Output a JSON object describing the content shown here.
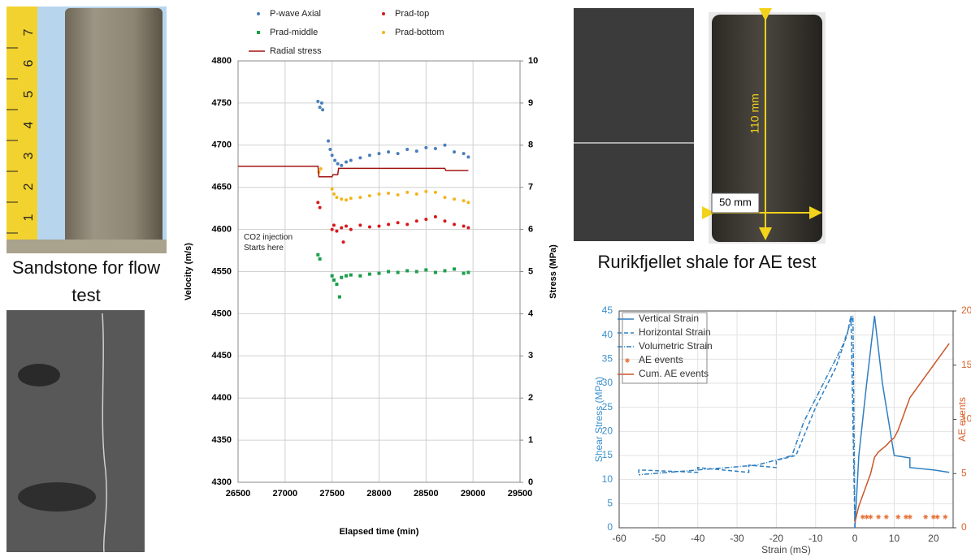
{
  "captions": {
    "sandstone": "Sandstone for flow test",
    "shale": "Rurikfjellet shale for AE test"
  },
  "photos": {
    "ruler_labels": [
      "1",
      "2",
      "3",
      "4",
      "5",
      "6",
      "7"
    ],
    "height_label": "110 mm",
    "width_label": "50 mm"
  },
  "chart_data": [
    {
      "type": "scatter",
      "x_label": "Elapsed time (min)",
      "y_label": "Velocity (m/s)",
      "y2_label": "Stress (MPa)",
      "annotation": "CO2 injection Starts here",
      "xlim": [
        26500,
        29500
      ],
      "xticks": [
        26500,
        27000,
        27500,
        28000,
        28500,
        29000,
        29500
      ],
      "ylim": [
        4300,
        4800
      ],
      "yticks": [
        4300,
        4350,
        4400,
        4450,
        4500,
        4550,
        4600,
        4650,
        4700,
        4750,
        4800
      ],
      "y2lim": [
        0,
        10
      ],
      "y2ticks": [
        0,
        1,
        2,
        3,
        4,
        5,
        6,
        7,
        8,
        9,
        10
      ],
      "grid": true,
      "legend": "top",
      "series": [
        {
          "name": "P-wave Axial",
          "color": "#4a7ebb",
          "marker": "dot",
          "x": [
            27350,
            27370,
            27390,
            27400,
            27460,
            27480,
            27500,
            27530,
            27560,
            27600,
            27650,
            27700,
            27800,
            27900,
            28000,
            28100,
            28200,
            28300,
            28400,
            28500,
            28600,
            28700,
            28800,
            28900,
            28950
          ],
          "values": [
            4752,
            4745,
            4750,
            4742,
            4705,
            4695,
            4688,
            4682,
            4678,
            4676,
            4680,
            4682,
            4685,
            4688,
            4690,
            4692,
            4690,
            4695,
            4693,
            4697,
            4696,
            4700,
            4692,
            4690,
            4686
          ]
        },
        {
          "name": "Prad-top",
          "color": "#d7191c",
          "marker": "dot",
          "x": [
            27350,
            27370,
            27500,
            27520,
            27550,
            27600,
            27620,
            27650,
            27700,
            27800,
            27900,
            28000,
            28100,
            28200,
            28300,
            28400,
            28500,
            28600,
            28700,
            28800,
            28900,
            28950
          ],
          "values": [
            4632,
            4626,
            4600,
            4605,
            4598,
            4602,
            4585,
            4604,
            4600,
            4605,
            4603,
            4604,
            4606,
            4608,
            4606,
            4610,
            4612,
            4615,
            4610,
            4606,
            4604,
            4602
          ]
        },
        {
          "name": "Prad-middle",
          "color": "#1a9f4a",
          "marker": "square",
          "x": [
            27350,
            27370,
            27500,
            27520,
            27550,
            27580,
            27600,
            27650,
            27700,
            27800,
            27900,
            28000,
            28100,
            28200,
            28300,
            28400,
            28500,
            28600,
            28700,
            28800,
            28900,
            28950
          ],
          "values": [
            4570,
            4565,
            4545,
            4540,
            4535,
            4520,
            4543,
            4545,
            4546,
            4545,
            4547,
            4548,
            4550,
            4549,
            4551,
            4550,
            4552,
            4549,
            4551,
            4553,
            4548,
            4549
          ]
        },
        {
          "name": "Prad-bottom",
          "color": "#f2b51d",
          "marker": "dot",
          "x": [
            27360,
            27380,
            27500,
            27520,
            27550,
            27600,
            27650,
            27700,
            27800,
            27900,
            28000,
            28100,
            28200,
            28300,
            28400,
            28500,
            28600,
            28700,
            28800,
            28900,
            28950
          ],
          "values": [
            4668,
            4672,
            4648,
            4642,
            4638,
            4636,
            4635,
            4637,
            4638,
            4640,
            4642,
            4643,
            4641,
            4644,
            4642,
            4645,
            4644,
            4638,
            4636,
            4634,
            4632
          ]
        },
        {
          "name": "Radial stress",
          "color": "#a31515",
          "type": "line",
          "axis": "y2",
          "linestyle": "solid",
          "x": [
            26500,
            27350,
            27360,
            27500,
            27510,
            27560,
            27570,
            28700,
            28710,
            28950
          ],
          "values": [
            7.5,
            7.5,
            7.25,
            7.25,
            7.3,
            7.3,
            7.45,
            7.45,
            7.4,
            7.4
          ]
        }
      ]
    },
    {
      "type": "line",
      "x_label": "Strain (mS)",
      "y_label": "Shear Stress (MPa)",
      "y2_label": "AE events",
      "xlim": [
        -60,
        25
      ],
      "xticks": [
        -60,
        -50,
        -40,
        -30,
        -20,
        -10,
        0,
        10,
        20
      ],
      "ylim": [
        0,
        45
      ],
      "yticks": [
        0,
        5,
        10,
        15,
        20,
        25,
        30,
        35,
        40,
        45
      ],
      "y2lim": [
        0,
        20
      ],
      "y2ticks": [
        0,
        5,
        10,
        15,
        20
      ],
      "y_color": "#3b8fcc",
      "y2_color": "#d9632b",
      "grid": true,
      "legend": "upper left",
      "series": [
        {
          "name": "Vertical Strain",
          "color": "#2f7fc1",
          "type": "line",
          "linestyle": "solid",
          "x": [
            0,
            1,
            3,
            5,
            7,
            10,
            14,
            14,
            20,
            24
          ],
          "values": [
            0,
            15,
            30,
            44,
            30,
            15,
            14.5,
            12.5,
            12,
            11.5
          ]
        },
        {
          "name": "Horizontal Strain",
          "color": "#2f7fc1",
          "type": "line",
          "linestyle": "dashed",
          "x": [
            0,
            -1,
            -2,
            -5,
            -10,
            -15,
            -20,
            -20,
            -27,
            -27,
            -40,
            -40,
            -55,
            -55
          ],
          "values": [
            0,
            44,
            40,
            33,
            25,
            15,
            14,
            12.5,
            13,
            11.5,
            12.5,
            11.5,
            12,
            11
          ]
        },
        {
          "name": "Volumetric Strain",
          "color": "#2f7fc1",
          "type": "line",
          "linestyle": "dashdot",
          "x": [
            0,
            -0.5,
            -3,
            -8,
            -13,
            -16,
            -18,
            -25,
            -40,
            -55
          ],
          "values": [
            0,
            44,
            38,
            30,
            22,
            15,
            14.5,
            13,
            12,
            11
          ]
        },
        {
          "name": "AE events",
          "color": "#e8743b",
          "type": "scatter",
          "marker": "star",
          "axis": "y2",
          "x": [
            2,
            3,
            4,
            6,
            8,
            11,
            13,
            14,
            18,
            20,
            21,
            23
          ],
          "values": [
            1,
            1,
            1,
            1,
            1,
            1,
            1,
            1,
            1,
            1,
            1,
            1
          ]
        },
        {
          "name": "Cum. AE events",
          "color": "#c9562a",
          "type": "line",
          "linestyle": "solid",
          "axis": "y2",
          "x": [
            0,
            1,
            2,
            3,
            4,
            5,
            6,
            7,
            8,
            9,
            10,
            11,
            12,
            13,
            14,
            15,
            16,
            17,
            18,
            19,
            20,
            21,
            22,
            23,
            24
          ],
          "values": [
            0.5,
            2,
            3,
            4,
            5,
            6.5,
            7,
            7.3,
            7.6,
            8,
            8.3,
            9,
            10,
            11,
            12,
            12.5,
            13,
            13.5,
            14,
            14.5,
            15,
            15.5,
            16,
            16.5,
            17
          ]
        }
      ]
    }
  ]
}
